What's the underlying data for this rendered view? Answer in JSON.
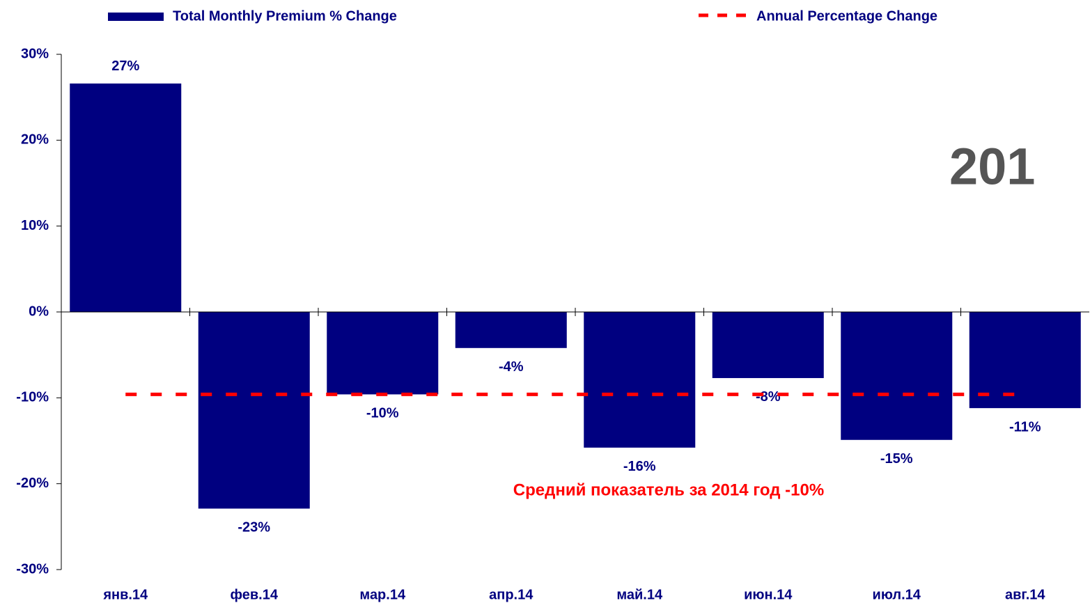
{
  "chart_data": {
    "type": "bar",
    "categories": [
      "янв.14",
      "фев.14",
      "мар.14",
      "апр.14",
      "май.14",
      "июн.14",
      "июл.14",
      "авг.14"
    ],
    "series": [
      {
        "name": "Total Monthly Premium % Change",
        "type": "bar",
        "color": "#000080",
        "values": [
          26.6,
          -22.9,
          -9.6,
          -4.2,
          -15.8,
          -7.7,
          -14.9,
          -11.2
        ],
        "value_labels": [
          "27%",
          "-23%",
          "-10%",
          "-4%",
          "-16%",
          "-8%",
          "-15%",
          "-11%"
        ]
      },
      {
        "name": "Annual Percentage Change",
        "type": "line",
        "color": "#ff0000",
        "dashed": true,
        "values": [
          -9.6,
          -9.6,
          -9.6,
          -9.6,
          -9.6,
          -9.6,
          -9.6,
          -9.6
        ]
      }
    ],
    "ylim": [
      -30,
      30
    ],
    "yticks": [
      {
        "value": -30,
        "label": "-30%"
      },
      {
        "value": -20,
        "label": "-20%"
      },
      {
        "value": -10,
        "label": "-10%"
      },
      {
        "value": 0,
        "label": "0%"
      },
      {
        "value": 10,
        "label": "10%"
      },
      {
        "value": 20,
        "label": "20%"
      },
      {
        "value": 30,
        "label": "30%"
      }
    ],
    "grid": false,
    "legend": "top",
    "annotations": [
      "Средний показатель за 2014 год -10%",
      "201"
    ]
  }
}
